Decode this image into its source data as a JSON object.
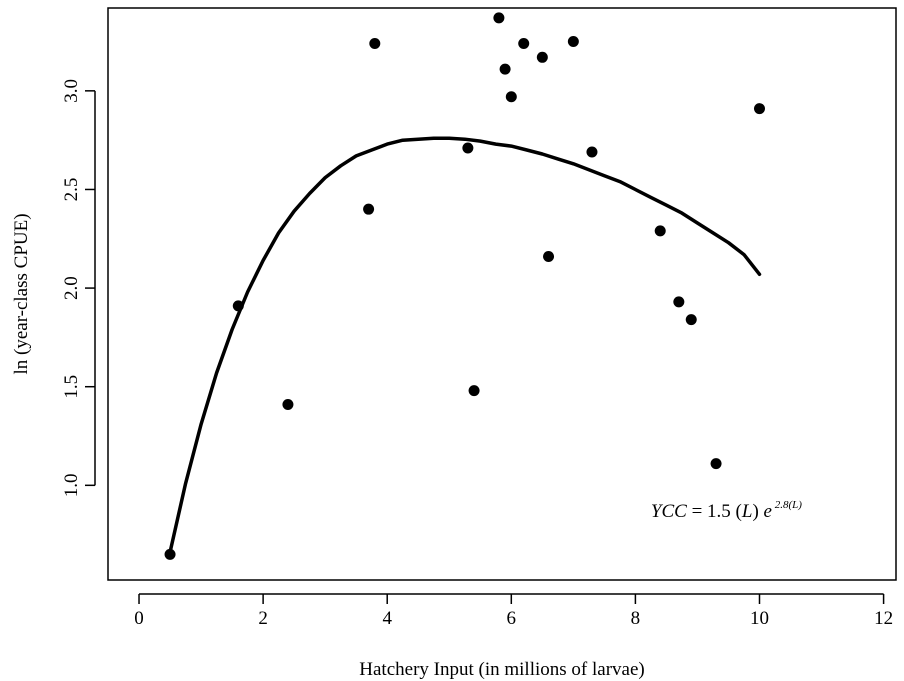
{
  "chart_data": {
    "type": "scatter",
    "xlabel": "Hatchery Input (in millions of larvae)",
    "ylabel": "ln (year-class CPUE)",
    "xlim": [
      -0.5,
      12.2
    ],
    "ylim": [
      0.52,
      3.42
    ],
    "xticks": [
      0,
      2,
      4,
      6,
      8,
      10,
      12
    ],
    "yticks": [
      1.0,
      1.5,
      2.0,
      2.5,
      3.0
    ],
    "ytick_labels": [
      "1.0",
      "1.5",
      "2.0",
      "2.5",
      "3.0"
    ],
    "grid": false,
    "points": [
      {
        "x": 0.5,
        "y": 0.65
      },
      {
        "x": 1.6,
        "y": 1.91
      },
      {
        "x": 2.4,
        "y": 1.41
      },
      {
        "x": 3.7,
        "y": 2.4
      },
      {
        "x": 3.8,
        "y": 3.24
      },
      {
        "x": 5.3,
        "y": 2.71
      },
      {
        "x": 5.4,
        "y": 1.48
      },
      {
        "x": 5.8,
        "y": 3.37
      },
      {
        "x": 5.9,
        "y": 3.11
      },
      {
        "x": 6.0,
        "y": 2.97
      },
      {
        "x": 6.2,
        "y": 3.24
      },
      {
        "x": 6.5,
        "y": 3.17
      },
      {
        "x": 6.6,
        "y": 2.16
      },
      {
        "x": 7.0,
        "y": 3.25
      },
      {
        "x": 7.3,
        "y": 2.69
      },
      {
        "x": 8.4,
        "y": 2.29
      },
      {
        "x": 8.7,
        "y": 1.93
      },
      {
        "x": 8.9,
        "y": 1.84
      },
      {
        "x": 9.3,
        "y": 1.11
      },
      {
        "x": 10.0,
        "y": 2.91
      }
    ],
    "fit_curve": {
      "x": [
        0.5,
        0.75,
        1.0,
        1.25,
        1.5,
        1.75,
        2.0,
        2.25,
        2.5,
        2.75,
        3.0,
        3.25,
        3.5,
        3.75,
        4.0,
        4.25,
        4.5,
        4.75,
        5.0,
        5.25,
        5.5,
        5.75,
        6.0,
        6.25,
        6.5,
        6.75,
        7.0,
        7.25,
        7.5,
        7.75,
        8.0,
        8.25,
        8.5,
        8.75,
        9.0,
        9.25,
        9.5,
        9.75,
        10.0
      ],
      "y": [
        0.66,
        1.01,
        1.31,
        1.57,
        1.79,
        1.98,
        2.14,
        2.28,
        2.39,
        2.48,
        2.56,
        2.62,
        2.67,
        2.7,
        2.73,
        2.75,
        2.755,
        2.76,
        2.76,
        2.755,
        2.745,
        2.73,
        2.72,
        2.7,
        2.68,
        2.655,
        2.63,
        2.6,
        2.57,
        2.54,
        2.5,
        2.46,
        2.42,
        2.38,
        2.33,
        2.28,
        2.23,
        2.17,
        2.07
      ]
    },
    "annotation": {
      "lhs": "YCC",
      "eq": " = 1.5 (",
      "var": "L",
      "mid": ") ",
      "base": "e",
      "exponent": " 2.8(L)",
      "x": 8.25,
      "y": 0.84
    }
  }
}
